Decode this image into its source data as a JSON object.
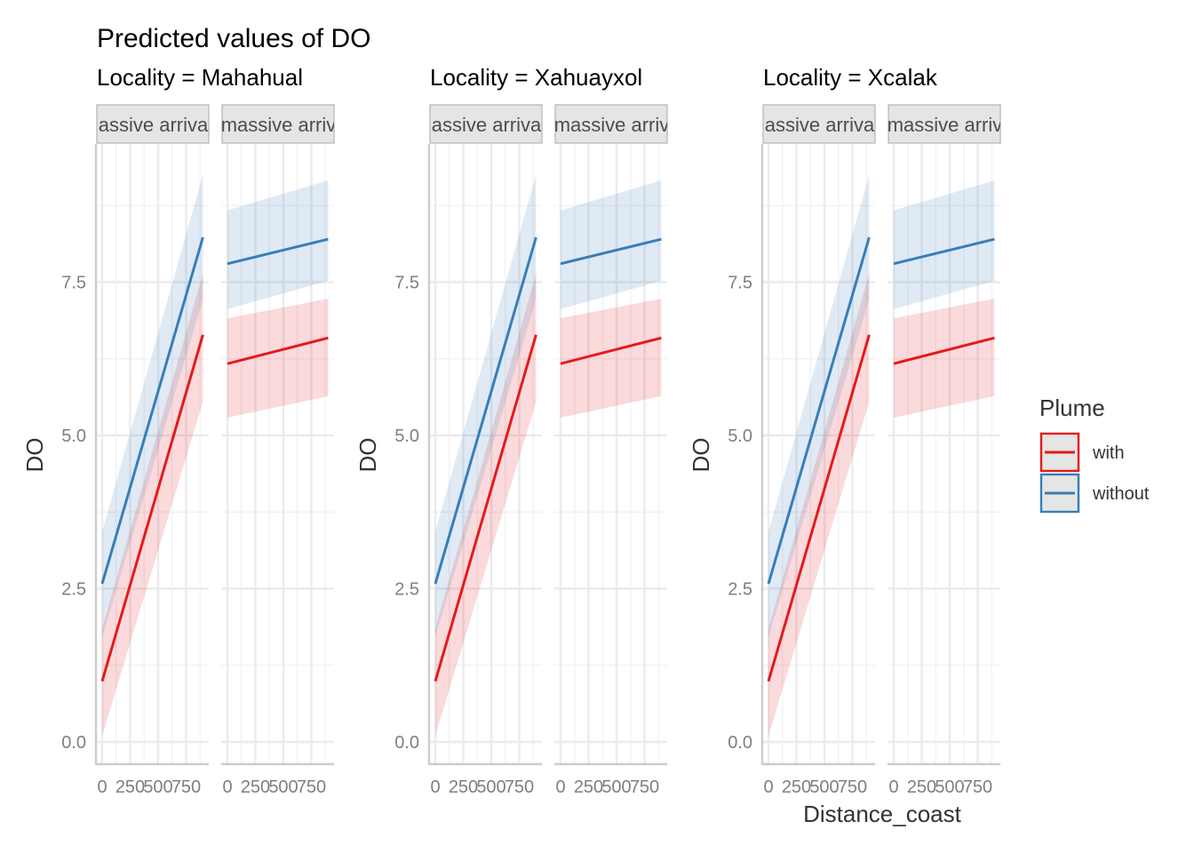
{
  "chart_data": {
    "type": "line",
    "title": "Predicted values of DO",
    "xlabel": "Distance_coast",
    "ylabel": "DO",
    "ylim": [
      -0.2,
      9.8
    ],
    "xlim": [
      -50,
      950
    ],
    "y_ticks": [
      0.0,
      2.5,
      5.0,
      7.5
    ],
    "y_tick_labels": [
      "0.0",
      "2.5",
      "5.0",
      "7.5"
    ],
    "x_ticks": [
      0,
      250,
      500,
      750
    ],
    "x_tick_labels": [
      "0",
      "250",
      "500",
      "750"
    ],
    "grid": true,
    "legend": {
      "title": "Plume",
      "placement": "right",
      "entries": [
        {
          "name": "with",
          "color": "#E41A1C"
        },
        {
          "name": "without",
          "color": "#377EB8"
        }
      ]
    },
    "x": [
      0,
      900
    ],
    "facets": [
      {
        "locality_label": "Locality = Mahahual",
        "panels": [
          {
            "strip_label": "assive arriva",
            "series": [
              {
                "name": "with",
                "values": [
                  0.99,
                  6.64
                ],
                "ci_low": [
                  0.1,
                  5.55
                ],
                "ci_high": [
                  1.85,
                  7.64
                ]
              },
              {
                "name": "without",
                "values": [
                  2.58,
                  8.23
                ],
                "ci_low": [
                  1.71,
                  7.22
                ],
                "ci_high": [
                  3.43,
                  9.25
                ]
              }
            ]
          },
          {
            "strip_label": "massive arriv",
            "series": [
              {
                "name": "with",
                "values": [
                  6.17,
                  6.59
                ],
                "ci_low": [
                  5.29,
                  5.64
                ],
                "ci_high": [
                  6.91,
                  7.23
                ]
              },
              {
                "name": "without",
                "values": [
                  7.8,
                  8.2
                ],
                "ci_low": [
                  7.06,
                  7.52
                ],
                "ci_high": [
                  8.67,
                  9.16
                ]
              }
            ]
          }
        ]
      },
      {
        "locality_label": "Locality = Xahuayxol",
        "panels": [
          {
            "strip_label": "assive arriva",
            "series": [
              {
                "name": "with",
                "values": [
                  0.99,
                  6.64
                ],
                "ci_low": [
                  0.1,
                  5.55
                ],
                "ci_high": [
                  1.85,
                  7.64
                ]
              },
              {
                "name": "without",
                "values": [
                  2.58,
                  8.23
                ],
                "ci_low": [
                  1.71,
                  7.22
                ],
                "ci_high": [
                  3.43,
                  9.25
                ]
              }
            ]
          },
          {
            "strip_label": "massive arriv",
            "series": [
              {
                "name": "with",
                "values": [
                  6.17,
                  6.59
                ],
                "ci_low": [
                  5.29,
                  5.64
                ],
                "ci_high": [
                  6.91,
                  7.23
                ]
              },
              {
                "name": "without",
                "values": [
                  7.8,
                  8.2
                ],
                "ci_low": [
                  7.06,
                  7.52
                ],
                "ci_high": [
                  8.67,
                  9.16
                ]
              }
            ]
          }
        ]
      },
      {
        "locality_label": "Locality = Xcalak",
        "panels": [
          {
            "strip_label": "assive arriva",
            "series": [
              {
                "name": "with",
                "values": [
                  0.99,
                  6.64
                ],
                "ci_low": [
                  0.1,
                  5.55
                ],
                "ci_high": [
                  1.85,
                  7.64
                ]
              },
              {
                "name": "without",
                "values": [
                  2.58,
                  8.23
                ],
                "ci_low": [
                  1.71,
                  7.22
                ],
                "ci_high": [
                  3.43,
                  9.25
                ]
              }
            ]
          },
          {
            "strip_label": "massive arriv",
            "series": [
              {
                "name": "with",
                "values": [
                  6.17,
                  6.59
                ],
                "ci_low": [
                  5.29,
                  5.64
                ],
                "ci_high": [
                  6.91,
                  7.23
                ]
              },
              {
                "name": "without",
                "values": [
                  7.8,
                  8.2
                ],
                "ci_low": [
                  7.06,
                  7.52
                ],
                "ci_high": [
                  8.67,
                  9.16
                ]
              }
            ]
          }
        ]
      }
    ]
  }
}
